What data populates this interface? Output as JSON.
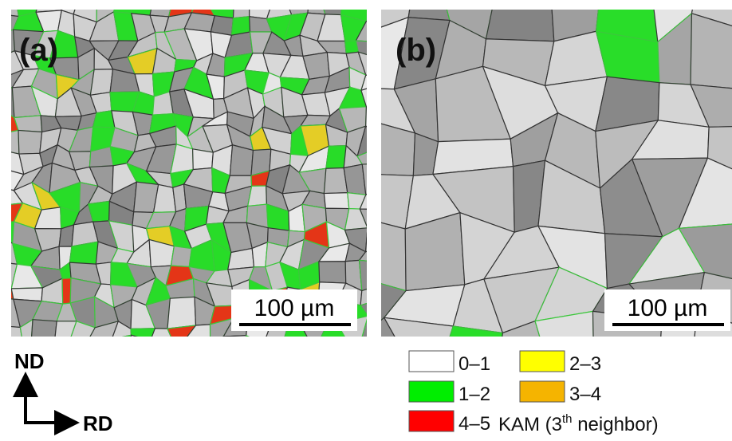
{
  "panels": [
    {
      "label": "(a)",
      "scale_bar": "100 µm"
    },
    {
      "label": "(b)",
      "scale_bar": "100 µm"
    }
  ],
  "axes": {
    "vertical": "ND",
    "horizontal": "RD"
  },
  "legend": {
    "items": [
      {
        "label": "0–1",
        "color": "#ffffff"
      },
      {
        "label": "2–3",
        "color": "#ffff00"
      },
      {
        "label": "1–2",
        "color": "#00ee00"
      },
      {
        "label": "3–4",
        "color": "#f5b400"
      },
      {
        "label": "4–5",
        "color": "#ff0000"
      }
    ],
    "title": {
      "text": "KAM (3",
      "superscript": "th",
      "rest": " neighbor)"
    }
  }
}
